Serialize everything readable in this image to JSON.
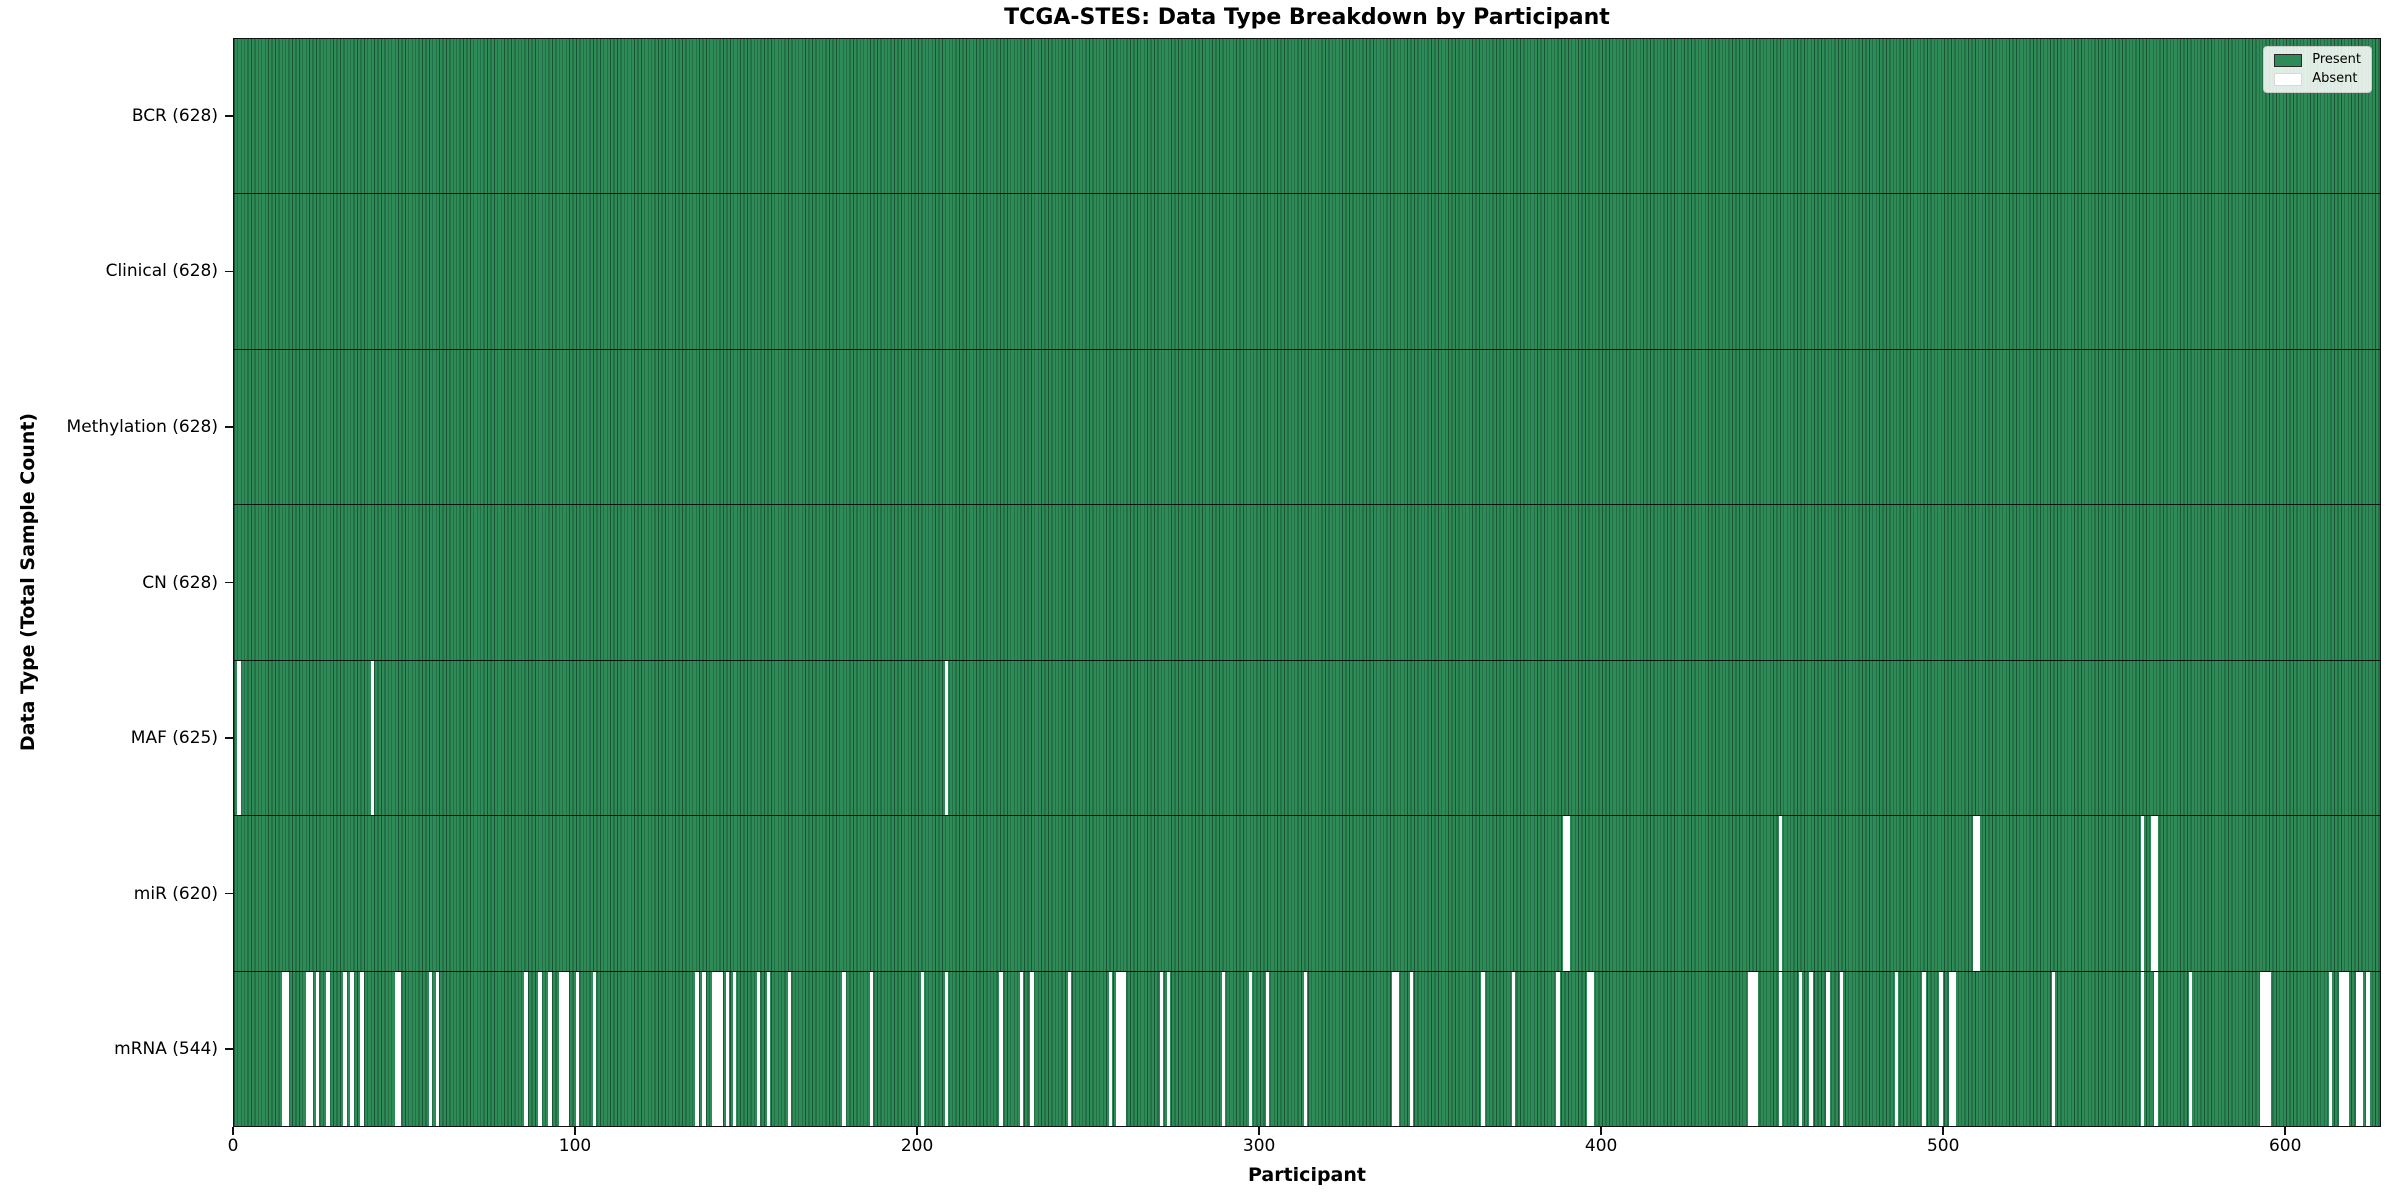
{
  "title": "TCGA-STES: Data Type Breakdown by Participant",
  "xlabel": "Participant",
  "ylabel": "Data Type (Total Sample Count)",
  "legend": {
    "present_label": "Present",
    "absent_label": "Absent"
  },
  "colors": {
    "present": "#2E8B57",
    "absent": "#FFFFFF",
    "column_edge": "rgba(8,38,24,0.55)",
    "spine": "#111111"
  },
  "total_participants": 628,
  "x_ticks": [
    0,
    100,
    200,
    300,
    400,
    500,
    600
  ],
  "chart_data": {
    "type": "heatmap",
    "title": "TCGA-STES: Data Type Breakdown by Participant",
    "xlabel": "Participant",
    "ylabel": "Data Type (Total Sample Count)",
    "x_range": [
      0,
      628
    ],
    "grid": false,
    "legend_entries": [
      "Present",
      "Absent"
    ],
    "legend_position": "upper right",
    "rows": [
      {
        "name": "BCR",
        "label": "BCR (628)",
        "present_count": 628,
        "absent_participants": []
      },
      {
        "name": "Clinical",
        "label": "Clinical (628)",
        "present_count": 628,
        "absent_participants": []
      },
      {
        "name": "Methylation",
        "label": "Methylation (628)",
        "present_count": 628,
        "absent_participants": []
      },
      {
        "name": "CN",
        "label": "CN (628)",
        "present_count": 628,
        "absent_participants": []
      },
      {
        "name": "MAF",
        "label": "MAF (625)",
        "present_count": 625,
        "absent_participants": [
          1,
          40,
          208
        ]
      },
      {
        "name": "miR",
        "label": "miR (620)",
        "present_count": 620,
        "absent_participants": [
          389,
          390,
          452,
          509,
          510,
          558,
          561,
          562
        ]
      },
      {
        "name": "mRNA",
        "label": "mRNA (544)",
        "present_count": 544,
        "absent_participants": [
          14,
          15,
          21,
          22,
          24,
          27,
          32,
          34,
          37,
          47,
          48,
          57,
          59,
          85,
          89,
          92,
          95,
          96,
          97,
          100,
          105,
          135,
          137,
          140,
          141,
          142,
          144,
          146,
          153,
          156,
          162,
          178,
          186,
          201,
          208,
          224,
          230,
          233,
          244,
          256,
          258,
          259,
          260,
          271,
          273,
          289,
          297,
          302,
          313,
          339,
          340,
          344,
          365,
          374,
          387,
          396,
          397,
          443,
          444,
          445,
          452,
          458,
          461,
          466,
          470,
          486,
          494,
          499,
          502,
          503,
          532,
          558,
          562,
          572,
          593,
          594,
          595,
          613,
          616,
          617,
          618,
          621,
          622,
          624
        ]
      }
    ]
  }
}
